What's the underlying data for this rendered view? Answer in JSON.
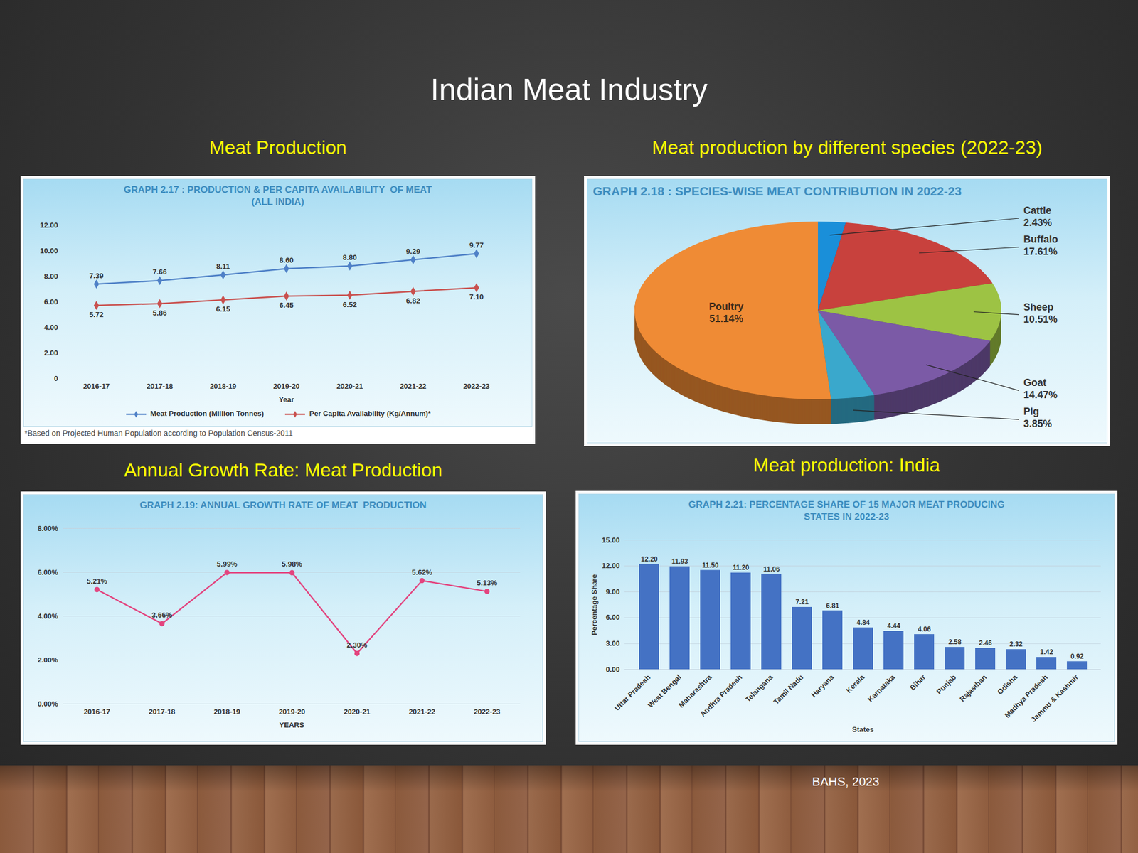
{
  "slide": {
    "title": "Indian Meat Industry",
    "source": "BAHS, 2023"
  },
  "chart_data": [
    {
      "type": "line",
      "panel_title": "Meat Production",
      "title": "GRAPH 2.17 : PRODUCTION & PER CAPITA AVAILABILITY  OF MEAT",
      "subtitle": "(ALL INDIA)",
      "xlabel": "Year",
      "categories": [
        "2016-17",
        "2017-18",
        "2018-19",
        "2019-20",
        "2020-21",
        "2021-22",
        "2022-23"
      ],
      "series": [
        {
          "name": "Meat Production (Million Tonnes)",
          "color": "#4f81c7",
          "values": [
            7.39,
            7.66,
            8.11,
            8.6,
            8.8,
            9.29,
            9.77
          ],
          "value_labels": [
            "7.39",
            "7.66",
            "8.11",
            "8.60",
            "8.80",
            "9.29",
            "9.77"
          ]
        },
        {
          "name": "Per Capita Availability (Kg/Annum)*",
          "color": "#c9514f",
          "values": [
            5.72,
            5.86,
            6.15,
            6.45,
            6.52,
            6.82,
            7.1
          ],
          "value_labels": [
            "5.72",
            "5.86",
            "6.15",
            "6.45",
            "6.52",
            "6.82",
            "7.10"
          ]
        }
      ],
      "ylim": [
        0,
        12
      ],
      "yticks": [
        0,
        {
          "value": 2,
          "label": "2.00"
        },
        {
          "value": 4,
          "label": "4.00"
        },
        {
          "value": 6,
          "label": "6.00"
        },
        {
          "value": 8,
          "label": "8.00"
        },
        {
          "value": 10,
          "label": "10.00"
        },
        {
          "value": 12,
          "label": "12.00"
        }
      ],
      "grid": false,
      "legend": "bottom",
      "data_labels": true,
      "marker": "diamond",
      "caption": "*Based on Projected Human Population according to Population Census-2011"
    },
    {
      "type": "pie",
      "panel_title": "Meat production by different species (2022-23)",
      "title": "GRAPH 2.18 : SPECIES-WISE MEAT CONTRIBUTION IN 2022-23",
      "categories": [
        "Cattle",
        "Buffalo",
        "Sheep",
        "Goat",
        "Pig",
        "Poultry"
      ],
      "values": [
        2.43,
        17.61,
        10.51,
        14.47,
        3.85,
        51.14
      ],
      "value_labels": [
        "2.43%",
        "17.61%",
        "10.51%",
        "14.47%",
        "3.85%",
        "51.14%"
      ],
      "colors": [
        "#1a8fd9",
        "#c8413d",
        "#9dc344",
        "#7b5aa6",
        "#3aa8cc",
        "#ef8b35"
      ],
      "data_labels": true
    },
    {
      "type": "line",
      "panel_title": "Annual Growth Rate: Meat Production",
      "title": "GRAPH 2.19: ANNUAL GROWTH RATE OF MEAT  PRODUCTION",
      "xlabel": "YEARS",
      "categories": [
        "2016-17",
        "2017-18",
        "2018-19",
        "2019-20",
        "2020-21",
        "2021-22",
        "2022-23"
      ],
      "values": [
        5.21,
        3.66,
        5.99,
        5.98,
        2.3,
        5.62,
        5.13
      ],
      "value_labels": [
        "5.21%",
        "3.66%",
        "5.99%",
        "5.98%",
        "2.30%",
        "5.62%",
        "5.13%"
      ],
      "color": "#e3457f",
      "ylim": [
        0,
        8
      ],
      "yticks": [
        {
          "value": 0,
          "label": "0.00%"
        },
        {
          "value": 2,
          "label": "2.00%"
        },
        {
          "value": 4,
          "label": "4.00%"
        },
        {
          "value": 6,
          "label": "6.00%"
        },
        {
          "value": 8,
          "label": "8.00%"
        }
      ],
      "grid": true,
      "data_labels": true,
      "marker": "circle"
    },
    {
      "type": "bar",
      "panel_title": "Meat production: India",
      "title": "GRAPH 2.21: PERCENTAGE SHARE OF 15 MAJOR MEAT PRODUCING",
      "subtitle": "STATES IN 2022-23",
      "xlabel": "States",
      "ylabel": "Percentage Share",
      "categories": [
        "Uttar Pradesh",
        "West Bengal",
        "Maharashtra",
        "Andhra Pradesh",
        "Telangana",
        "Tamil Nadu",
        "Haryana",
        "Kerala",
        "Karnataka",
        "Bihar",
        "Punjab",
        "Rajasthan",
        "Odisha",
        "Madhya Pradesh",
        "Jammu & Kashmir"
      ],
      "values": [
        12.2,
        11.93,
        11.5,
        11.2,
        11.06,
        7.21,
        6.81,
        4.84,
        4.44,
        4.06,
        2.58,
        2.46,
        2.32,
        1.42,
        0.92
      ],
      "value_labels": [
        "12.20",
        "11.93",
        "11.50",
        "11.20",
        "11.06",
        "7.21",
        "6.81",
        "4.84",
        "4.44",
        "4.06",
        "2.58",
        "2.46",
        "2.32",
        "1.42",
        "0.92"
      ],
      "color": "#4472c4",
      "ylim": [
        0,
        15
      ],
      "yticks": [
        {
          "value": 0,
          "label": "0.00"
        },
        {
          "value": 3,
          "label": "3.00"
        },
        {
          "value": 6,
          "label": "6.00"
        },
        {
          "value": 9,
          "label": "9.00"
        },
        {
          "value": 12,
          "label": "12.00"
        },
        {
          "value": 15,
          "label": "15.00"
        }
      ],
      "grid": true,
      "data_labels": true
    }
  ]
}
